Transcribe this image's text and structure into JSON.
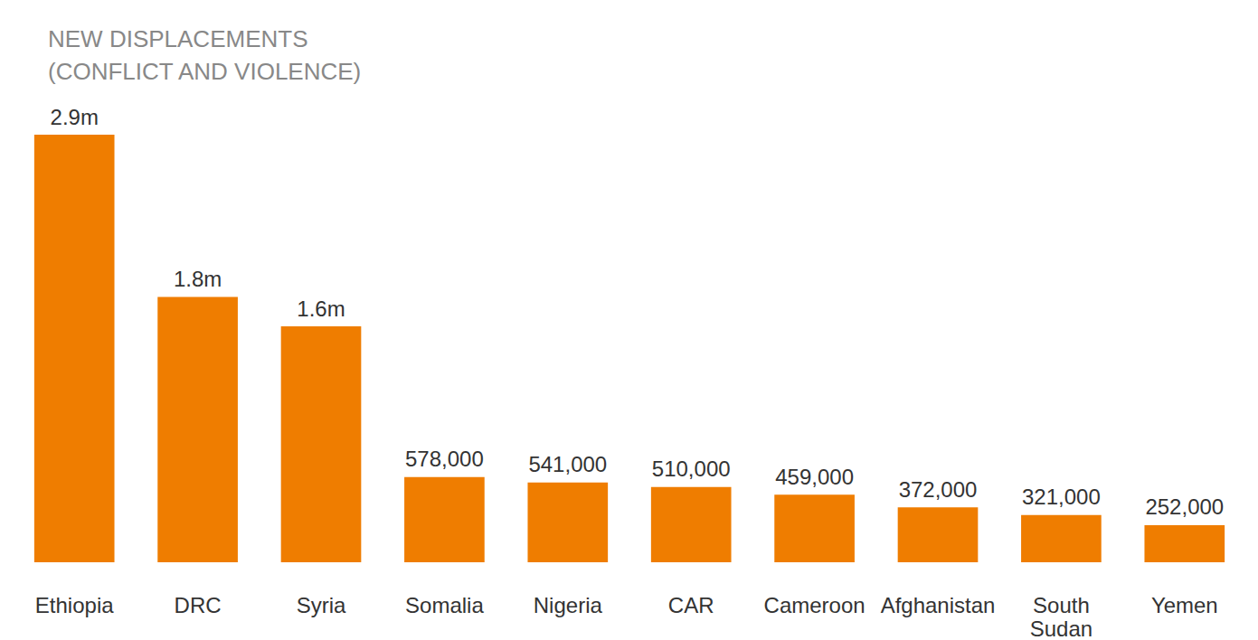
{
  "chart_data": {
    "type": "bar",
    "title": "NEW DISPLACEMENTS\n(CONFLICT AND VIOLENCE)",
    "categories": [
      "Ethiopia",
      "DRC",
      "Syria",
      "Somalia",
      "Nigeria",
      "CAR",
      "Cameroon",
      "Afghanistan",
      "South Sudan",
      "Yemen"
    ],
    "values": [
      2900000,
      1800000,
      1600000,
      578000,
      541000,
      510000,
      459000,
      372000,
      321000,
      252000
    ],
    "value_labels": [
      "2.9m",
      "1.8m",
      "1.6m",
      "578,000",
      "541,000",
      "510,000",
      "459,000",
      "372,000",
      "321,000",
      "252,000"
    ],
    "color": "#ef7d00",
    "ylim": [
      0,
      2900000
    ],
    "data_labels": true,
    "tick_labels": "x",
    "grid": false
  }
}
